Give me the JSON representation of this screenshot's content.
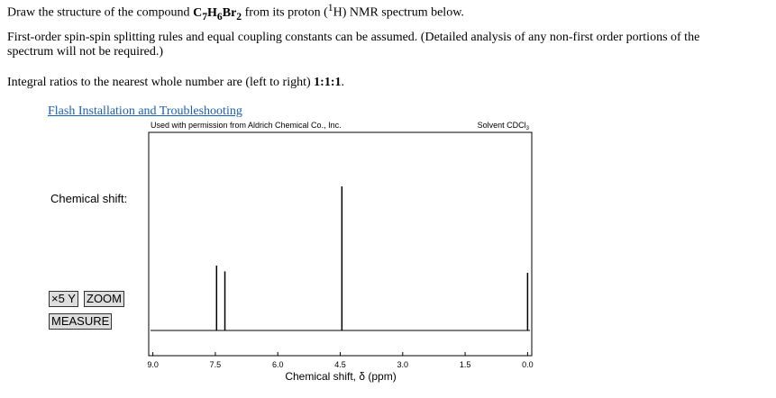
{
  "question": {
    "line1_prefix": "Draw the structure of the compound ",
    "formula": [
      "C",
      "7",
      "H",
      "6",
      "Br",
      "2"
    ],
    "line1_mid": " from its proton (",
    "nucleus_mass": "1",
    "line1_suffix": "H) NMR spectrum below.",
    "paragraph2": [
      "First-order spin-spin splitting rules and equal coupling constants can be assumed. (Detailed analysis of any non-first order portions of the",
      "spectrum will not be required.)"
    ],
    "integral_prefix": "Integral ratios to the nearest whole number are (left to right) ",
    "integral_ratio": "1:1:1",
    "integral_suffix": "."
  },
  "link": "Flash Installation and Troubleshooting",
  "side": {
    "label": "Chemical shift:",
    "buttons": [
      "×5 Y",
      "ZOOM",
      "MEASURE"
    ]
  },
  "chart_data": {
    "type": "spectrum",
    "credit": "Used with permission from Aldrich Chemical Co., Inc.",
    "solvent": "Solvent CDCl",
    "solvent_sub": "3",
    "xlabel": "Chemical shift, δ (ppm)",
    "xlim": [
      9.1,
      -0.1
    ],
    "xticks": [
      {
        "value": 9,
        "label": "9.0"
      },
      7.5,
      {
        "value": 6,
        "label": "6.0"
      },
      4.5,
      {
        "value": 3,
        "label": "3.0"
      },
      1.5,
      {
        "value": 0,
        "label": "0.0"
      }
    ],
    "peaks": {
      "shift": [
        7.47,
        7.27,
        4.46,
        0.0
      ],
      "height": [
        45,
        41,
        100,
        40
      ]
    },
    "color": "#000000"
  }
}
